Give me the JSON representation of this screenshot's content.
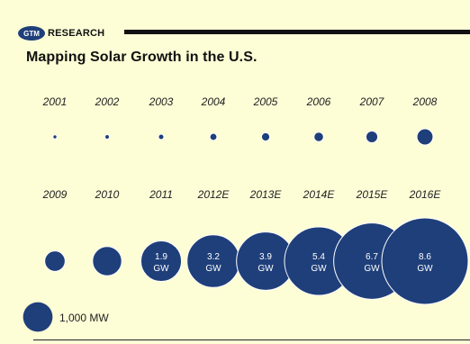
{
  "header": {
    "logo_mark": "GTM",
    "logo_text": "RESEARCH",
    "title": "Mapping Solar Growth in the U.S."
  },
  "colors": {
    "bubble": "#1f3f7a",
    "background": "#fdfdd6",
    "text": "#222222"
  },
  "chart_data": {
    "type": "bubble",
    "title": "Mapping Solar Growth in the U.S.",
    "unit": "MW",
    "series": [
      {
        "rows": [
          {
            "categories": [
              "2001",
              "2002",
              "2003",
              "2004",
              "2005",
              "2006",
              "2007",
              "2008"
            ],
            "values": [
              11,
              23,
              34,
              58,
              79,
              105,
              160,
              298
            ]
          },
          {
            "categories": [
              "2009",
              "2010",
              "2011",
              "2012E",
              "2013E",
              "2014E",
              "2015E",
              "2016E"
            ],
            "values": [
              480,
              980,
              1900,
              3200,
              3900,
              5400,
              6700,
              8600
            ]
          }
        ]
      }
    ],
    "data_labels": [
      {
        "category": "2011",
        "value": "1.9",
        "unit": "GW"
      },
      {
        "category": "2012E",
        "value": "3.2",
        "unit": "GW"
      },
      {
        "category": "2013E",
        "value": "3.9",
        "unit": "GW"
      },
      {
        "category": "2014E",
        "value": "5.4",
        "unit": "GW"
      },
      {
        "category": "2015E",
        "value": "6.7",
        "unit": "GW"
      },
      {
        "category": "2016E",
        "value": "8.6",
        "unit": "GW"
      }
    ],
    "legend": {
      "value": 1000,
      "label": "1,000 MW",
      "placement": "bottom-left"
    }
  }
}
